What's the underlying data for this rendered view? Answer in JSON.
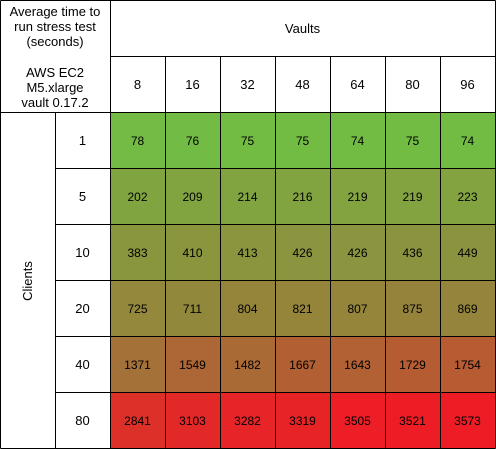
{
  "header": {
    "corner_title_lines": [
      "Average time to",
      "run stress test",
      "(seconds)"
    ],
    "corner_sub_lines": [
      "AWS EC2",
      "M5.xlarge",
      "vault 0.17.2"
    ],
    "column_group_label": "Vaults",
    "row_group_label": "Clients"
  },
  "chart_data": {
    "type": "heatmap",
    "title": "Average time to run stress test (seconds)",
    "subtitle": "AWS EC2 M5.xlarge vault 0.17.2",
    "xlabel": "Vaults",
    "ylabel": "Clients",
    "x": [
      "8",
      "16",
      "32",
      "48",
      "64",
      "80",
      "96"
    ],
    "y": [
      "1",
      "5",
      "10",
      "20",
      "40",
      "80"
    ],
    "values": [
      [
        78,
        76,
        75,
        75,
        74,
        75,
        74
      ],
      [
        202,
        209,
        214,
        216,
        219,
        219,
        223
      ],
      [
        383,
        410,
        413,
        426,
        426,
        436,
        449
      ],
      [
        725,
        711,
        804,
        821,
        807,
        875,
        869
      ],
      [
        1371,
        1549,
        1482,
        1667,
        1643,
        1729,
        1754
      ],
      [
        2841,
        3103,
        3282,
        3319,
        3505,
        3521,
        3573
      ]
    ],
    "colors": {
      "low": "#72bc44",
      "mid": "#9a7c3a",
      "high": "#ee1c25"
    }
  }
}
